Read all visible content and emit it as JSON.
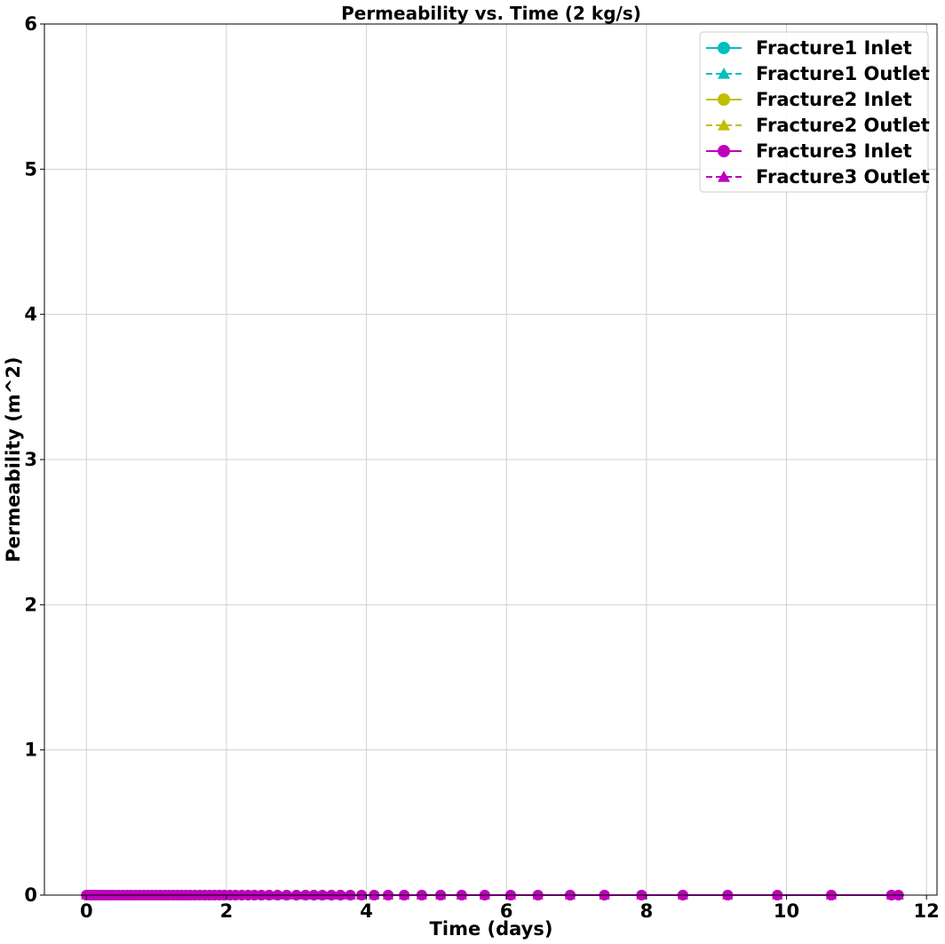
{
  "chart_data": {
    "type": "line",
    "title": "Permeability vs. Time (2 kg/s)",
    "xlabel": "Time (days)",
    "ylabel": "Permeability (m^2)",
    "xlim": [
      -0.6,
      12.15
    ],
    "ylim": [
      0,
      6
    ],
    "xticks": [
      0,
      2,
      4,
      6,
      8,
      10,
      12
    ],
    "yticks": [
      0,
      1,
      2,
      3,
      4,
      5,
      6
    ],
    "grid": true,
    "legend_position": "top-right",
    "x": [
      0,
      0.04,
      0.08,
      0.12,
      0.16,
      0.2,
      0.25,
      0.3,
      0.35,
      0.4,
      0.46,
      0.52,
      0.58,
      0.64,
      0.7,
      0.76,
      0.82,
      0.88,
      0.94,
      1.0,
      1.06,
      1.12,
      1.18,
      1.24,
      1.3,
      1.36,
      1.42,
      1.48,
      1.55,
      1.62,
      1.69,
      1.76,
      1.83,
      1.9,
      1.97,
      2.05,
      2.13,
      2.22,
      2.31,
      2.4,
      2.5,
      2.61,
      2.73,
      2.86,
      3.0,
      3.13,
      3.25,
      3.37,
      3.5,
      3.63,
      3.77,
      3.93,
      4.11,
      4.31,
      4.54,
      4.79,
      5.06,
      5.36,
      5.69,
      6.06,
      6.45,
      6.91,
      7.4,
      7.93,
      8.52,
      9.16,
      9.87,
      10.64,
      11.5,
      11.6
    ],
    "series": [
      {
        "name": "Fracture1 Inlet",
        "color": "#00bfbf",
        "linestyle": "solid",
        "marker": "circle",
        "constant_value": 0
      },
      {
        "name": "Fracture1 Outlet",
        "color": "#00bfbf",
        "linestyle": "dashed",
        "marker": "triangle",
        "constant_value": 0
      },
      {
        "name": "Fracture2 Inlet",
        "color": "#bfbf00",
        "linestyle": "solid",
        "marker": "circle",
        "constant_value": 0
      },
      {
        "name": "Fracture2 Outlet",
        "color": "#bfbf00",
        "linestyle": "dashed",
        "marker": "triangle",
        "constant_value": 0
      },
      {
        "name": "Fracture3 Inlet",
        "color": "#bf00bf",
        "linestyle": "solid",
        "marker": "circle",
        "constant_value": 0
      },
      {
        "name": "Fracture3 Outlet",
        "color": "#bf00bf",
        "linestyle": "dashed",
        "marker": "triangle",
        "constant_value": 0
      }
    ]
  }
}
